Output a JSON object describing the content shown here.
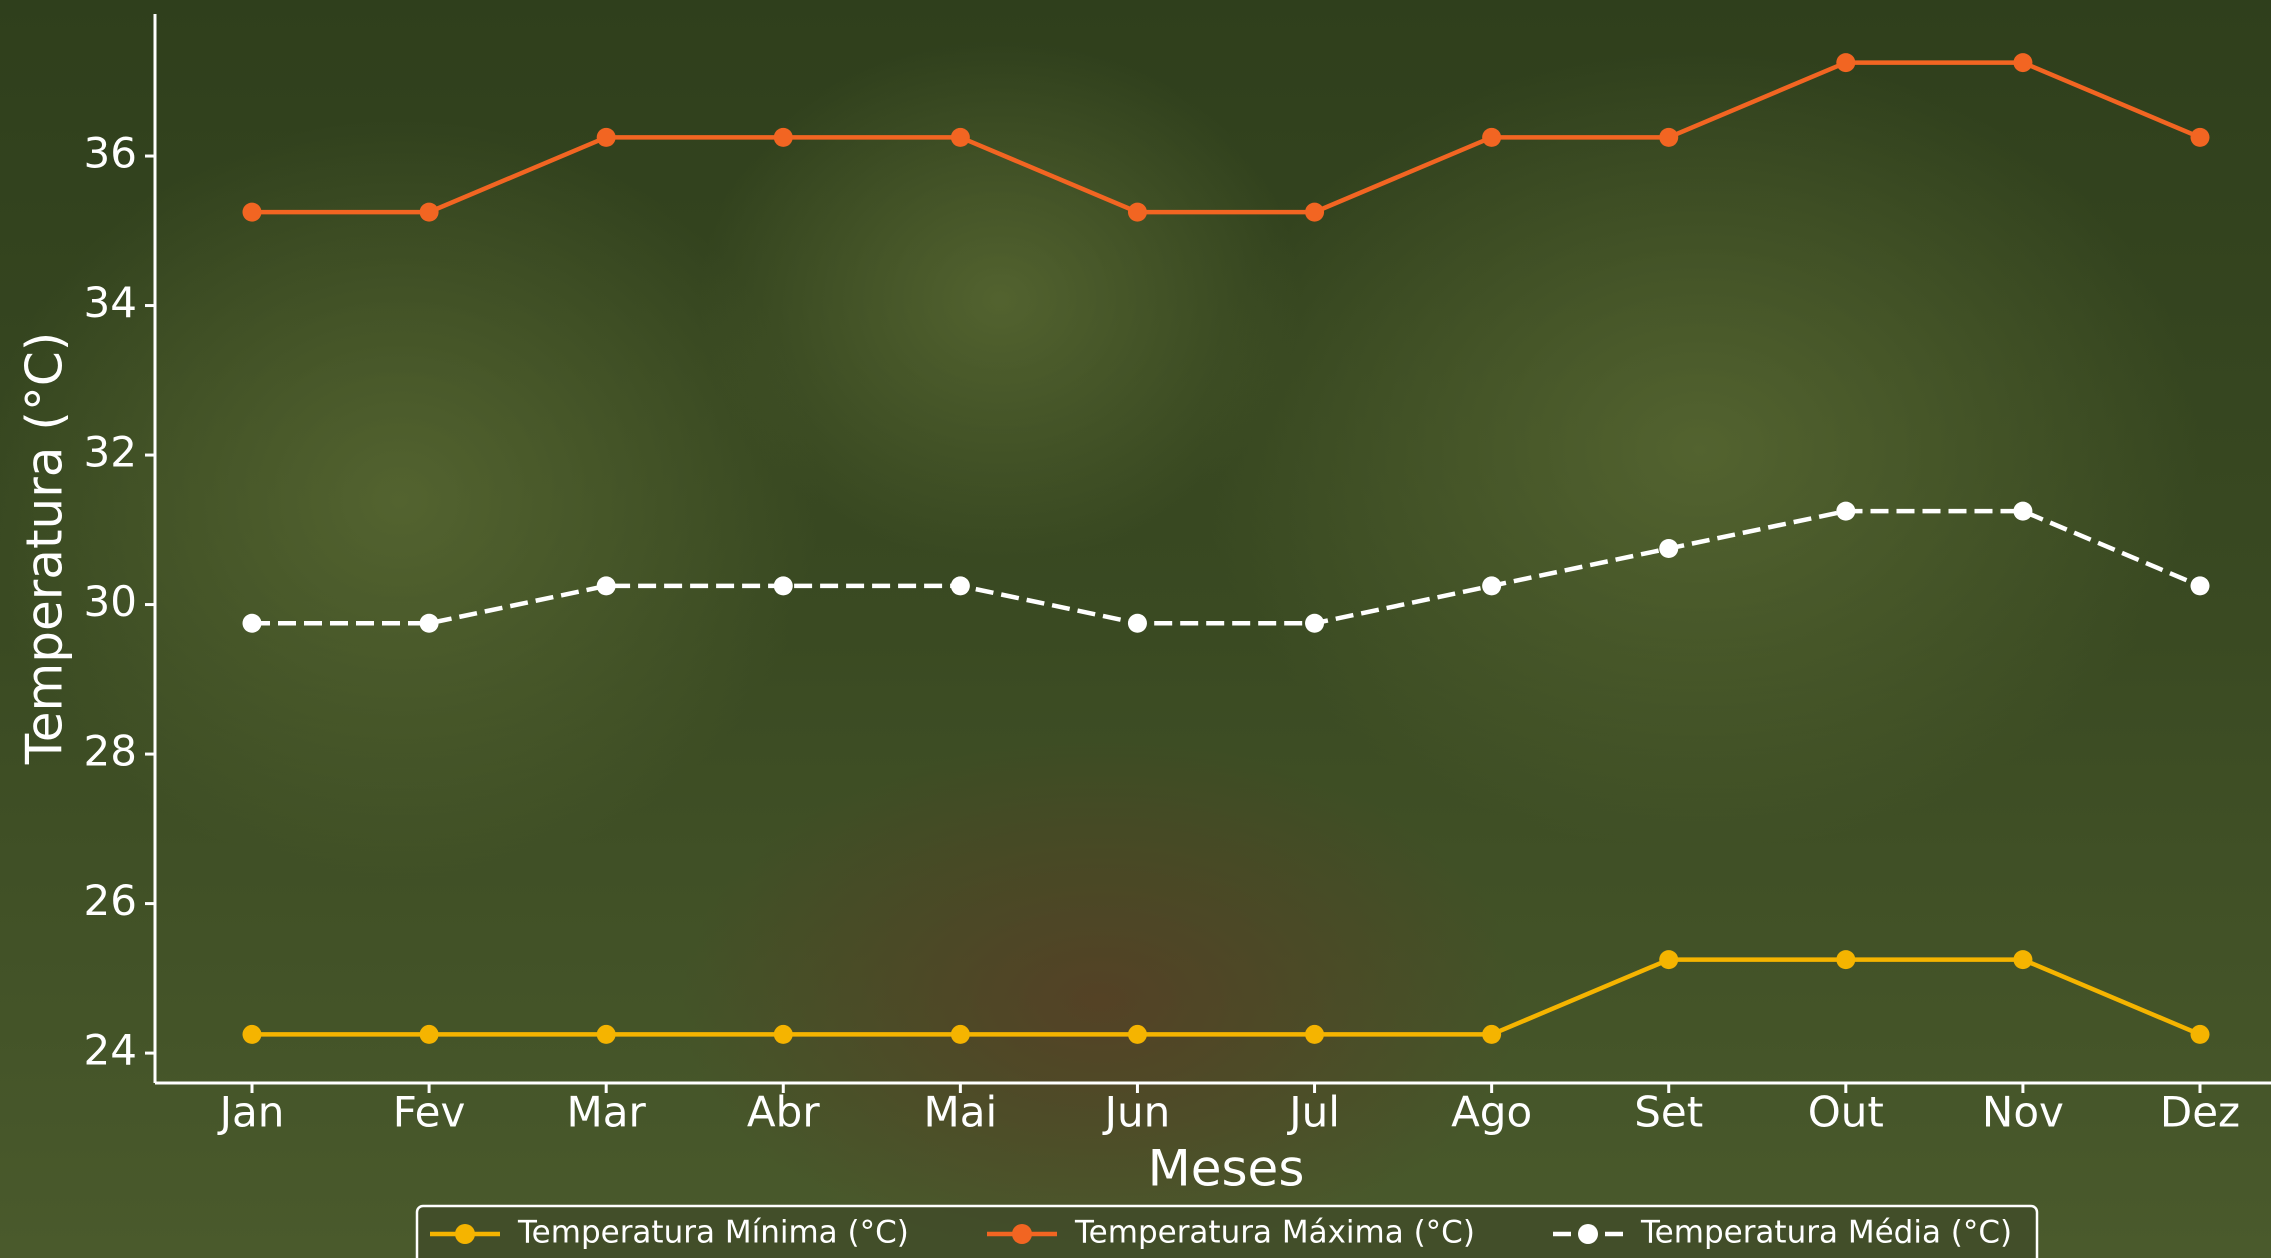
{
  "chart_data": {
    "type": "line",
    "x_label": "Meses",
    "y_label": "Temperatura (°C)",
    "categories": [
      "Jan",
      "Fev",
      "Mar",
      "Abr",
      "Mai",
      "Jun",
      "Jul",
      "Ago",
      "Set",
      "Out",
      "Nov",
      "Dez"
    ],
    "series": [
      {
        "name": "Temperatura Mínima (°C)",
        "color": "#f5b400",
        "dashed": false,
        "values": [
          24.25,
          24.25,
          24.25,
          24.25,
          24.25,
          24.25,
          24.25,
          24.25,
          25.25,
          25.25,
          25.25,
          24.25
        ]
      },
      {
        "name": "Temperatura Máxima (°C)",
        "color": "#f26522",
        "dashed": false,
        "values": [
          35.25,
          35.25,
          36.25,
          36.25,
          36.25,
          35.25,
          35.25,
          36.25,
          36.25,
          37.25,
          37.25,
          36.25
        ]
      },
      {
        "name": "Temperatura Média (°C)",
        "color": "#ffffff",
        "dashed": true,
        "values": [
          29.75,
          29.75,
          30.25,
          30.25,
          30.25,
          29.75,
          29.75,
          30.25,
          30.75,
          31.25,
          31.25,
          30.25
        ]
      }
    ],
    "ylim": [
      23.6,
      37.9
    ],
    "yticks": [
      24,
      26,
      28,
      30,
      32,
      34,
      36
    ],
    "grid": false,
    "legend": "bottom"
  }
}
